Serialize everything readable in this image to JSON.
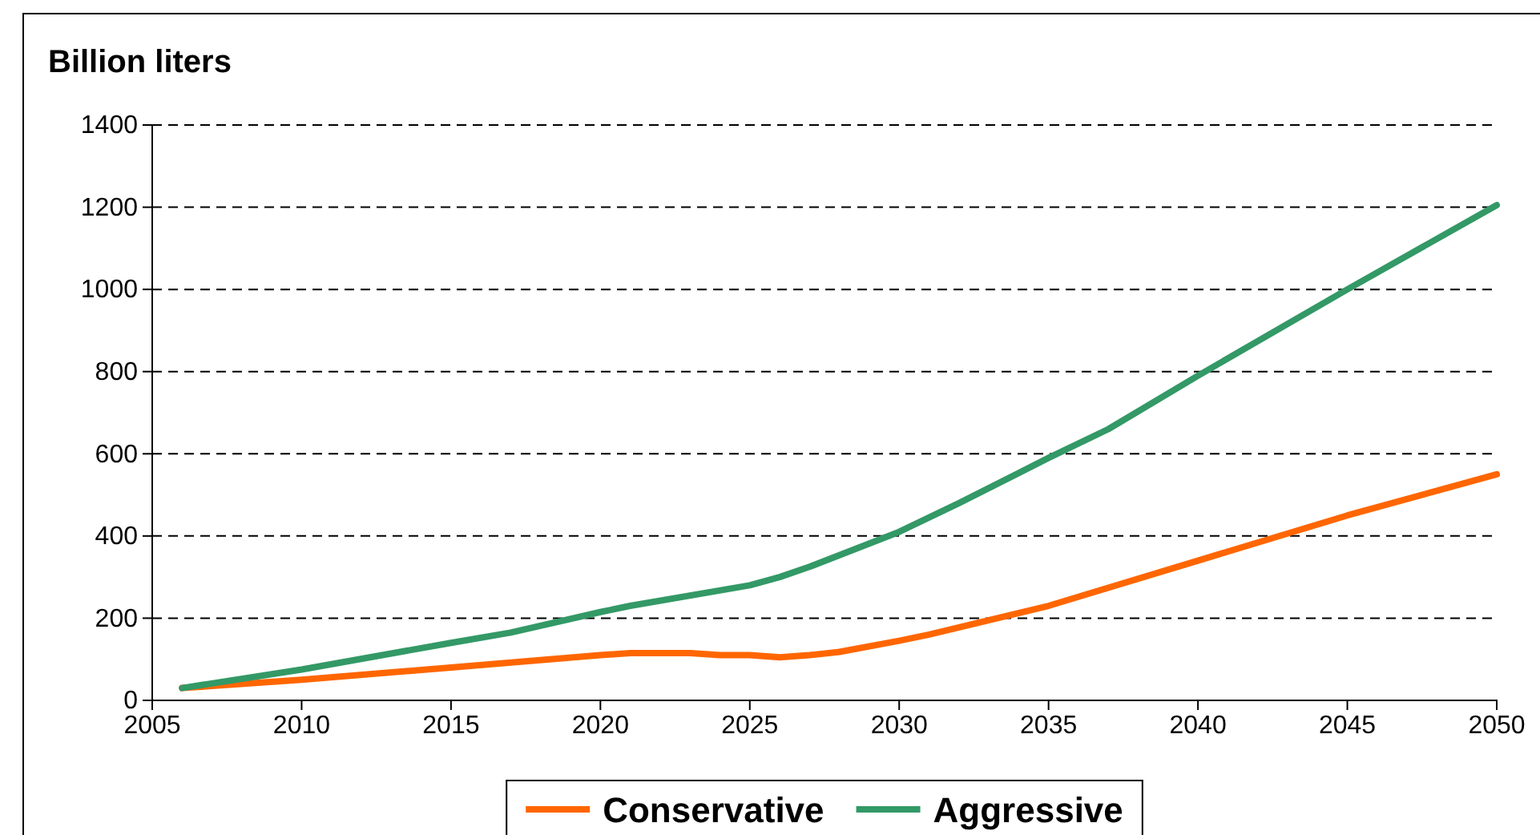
{
  "chart_data": {
    "type": "line",
    "ylabel": "Billion liters",
    "xlim": [
      2005,
      2050
    ],
    "xticks": [
      2005,
      2010,
      2015,
      2020,
      2025,
      2030,
      2035,
      2040,
      2045,
      2050
    ],
    "ylim": [
      0,
      1400
    ],
    "yticks": [
      0,
      200,
      400,
      600,
      800,
      1000,
      1200,
      1400
    ],
    "grid": "y",
    "legend": "bottom",
    "marker": "none",
    "line_style": "solid",
    "series": [
      {
        "name": "Conservative",
        "color": "#ff6600",
        "x": [
          2006,
          2010,
          2015,
          2020,
          2021,
          2023,
          2024,
          2025,
          2026,
          2027,
          2028,
          2030,
          2031,
          2035,
          2040,
          2045,
          2050
        ],
        "values": [
          30,
          50,
          80,
          110,
          115,
          115,
          110,
          110,
          105,
          110,
          118,
          145,
          160,
          230,
          340,
          450,
          550
        ]
      },
      {
        "name": "Aggressive",
        "color": "#339966",
        "x": [
          2006,
          2010,
          2015,
          2017,
          2020,
          2021,
          2025,
          2026,
          2027,
          2030,
          2032,
          2035,
          2037,
          2040,
          2045,
          2050
        ],
        "values": [
          30,
          75,
          140,
          165,
          215,
          230,
          280,
          300,
          325,
          410,
          480,
          590,
          660,
          790,
          1000,
          1205
        ]
      }
    ]
  }
}
